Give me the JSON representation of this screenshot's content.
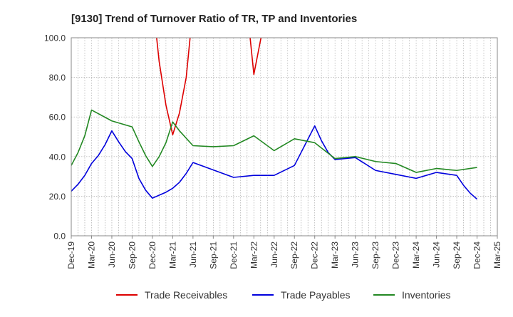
{
  "chart_data": {
    "type": "line",
    "title": "[9130]  Trend of Turnover Ratio of TR, TP and Inventories",
    "xlabel": "",
    "ylabel": "",
    "ylim": [
      0,
      100
    ],
    "yticks": [
      "0.0",
      "20.0",
      "40.0",
      "60.0",
      "80.0",
      "100.0"
    ],
    "x": [
      "Dec-19",
      "Jan-20",
      "Feb-20",
      "Mar-20",
      "Apr-20",
      "May-20",
      "Jun-20",
      "Jul-20",
      "Aug-20",
      "Sep-20",
      "Oct-20",
      "Nov-20",
      "Dec-20",
      "Jan-21",
      "Feb-21",
      "Mar-21",
      "Apr-21",
      "May-21",
      "Jun-21",
      "Jul-21",
      "Aug-21",
      "Sep-21",
      "Oct-21",
      "Nov-21",
      "Dec-21",
      "Jan-22",
      "Feb-22",
      "Mar-22",
      "Apr-22",
      "May-22",
      "Jun-22",
      "Jul-22",
      "Aug-22",
      "Sep-22",
      "Oct-22",
      "Nov-22",
      "Dec-22",
      "Jan-23",
      "Feb-23",
      "Mar-23",
      "Apr-23",
      "May-23",
      "Jun-23",
      "Jul-23",
      "Aug-23",
      "Sep-23",
      "Oct-23",
      "Nov-23",
      "Dec-23",
      "Jan-24",
      "Feb-24",
      "Mar-24",
      "Apr-24",
      "May-24",
      "Jun-24",
      "Jul-24",
      "Aug-24",
      "Sep-24",
      "Oct-24",
      "Nov-24",
      "Dec-24",
      "Jan-25",
      "Feb-25",
      "Mar-25"
    ],
    "xtick_labels": [
      "Dec-19",
      "Mar-20",
      "Jun-20",
      "Sep-20",
      "Dec-20",
      "Mar-21",
      "Jun-21",
      "Sep-21",
      "Dec-21",
      "Mar-22",
      "Jun-22",
      "Sep-22",
      "Dec-22",
      "Mar-23",
      "Jun-23",
      "Sep-23",
      "Dec-23",
      "Mar-24",
      "Jun-24",
      "Sep-24",
      "Dec-24",
      "Mar-25"
    ],
    "grid": true,
    "legend_position": "bottom",
    "series": [
      {
        "name": "Trade Receivables",
        "color": "#dd0000",
        "values": [
          null,
          null,
          null,
          null,
          null,
          null,
          null,
          null,
          null,
          null,
          null,
          null,
          120.0,
          88.0,
          66.0,
          51.0,
          62.0,
          80.0,
          115.0,
          null,
          null,
          null,
          null,
          null,
          null,
          null,
          115.0,
          81.5,
          99.0,
          115.0,
          null,
          null,
          null,
          null,
          null,
          null,
          null,
          null,
          null,
          null,
          null,
          null,
          null,
          null,
          null,
          null,
          null,
          null,
          null,
          null,
          null,
          null,
          null,
          null,
          null,
          null,
          null,
          null,
          null,
          null,
          null,
          null,
          null,
          null
        ]
      },
      {
        "name": "Trade Payables",
        "color": "#0000dd",
        "values": [
          22.5,
          26.0,
          30.5,
          36.5,
          40.5,
          46.0,
          53.0,
          47.5,
          42.5,
          39.0,
          29.0,
          23.0,
          19.0,
          20.5,
          22.0,
          24.0,
          27.0,
          31.5,
          37.0,
          null,
          null,
          null,
          null,
          null,
          29.5,
          null,
          null,
          30.5,
          null,
          null,
          30.5,
          null,
          null,
          35.5,
          null,
          null,
          55.5,
          48.0,
          42.0,
          38.5,
          null,
          null,
          39.5,
          null,
          null,
          33.0,
          null,
          null,
          31.0,
          null,
          null,
          29.0,
          null,
          null,
          32.0,
          null,
          null,
          30.5,
          25.5,
          21.5,
          18.5,
          null,
          null,
          null
        ]
      },
      {
        "name": "Inventories",
        "color": "#228822",
        "values": [
          35.5,
          42.0,
          50.5,
          63.5,
          null,
          null,
          58.0,
          null,
          null,
          55.0,
          47.5,
          40.5,
          35.0,
          40.0,
          47.0,
          57.5,
          53.0,
          null,
          45.5,
          null,
          null,
          45.0,
          null,
          null,
          45.5,
          null,
          null,
          50.5,
          null,
          null,
          43.0,
          null,
          null,
          49.0,
          null,
          null,
          47.0,
          null,
          null,
          39.0,
          null,
          null,
          40.0,
          null,
          null,
          37.5,
          null,
          null,
          36.5,
          null,
          null,
          32.0,
          null,
          null,
          34.0,
          null,
          null,
          33.0,
          null,
          null,
          34.5,
          null,
          null,
          null
        ]
      }
    ]
  }
}
